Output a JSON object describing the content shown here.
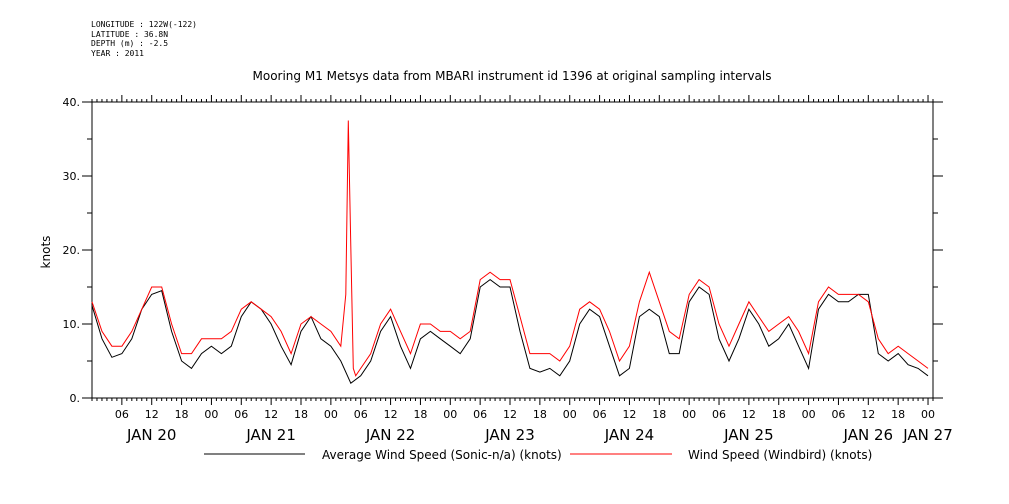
{
  "meta": {
    "longitude": "LONGITUDE : 122W(-122)",
    "latitude": "LATITUDE : 36.8N",
    "depth": "DEPTH (m) : -2.5",
    "year": "YEAR : 2011"
  },
  "chart_data": {
    "type": "line",
    "title": "Mooring M1 Metsys data from MBARI instrument id 1396 at original sampling intervals",
    "ylabel": "knots",
    "xlabel": "",
    "ylim": [
      0,
      40
    ],
    "yticks": [
      0,
      10,
      20,
      30,
      40
    ],
    "ytick_labels": [
      "0.",
      "10.",
      "20.",
      "30.",
      "40."
    ],
    "xlim_hours": [
      0,
      169
    ],
    "hour_tick_labels": [
      "06",
      "12",
      "18",
      "00",
      "06",
      "12",
      "18",
      "00",
      "06",
      "12",
      "18",
      "00",
      "06",
      "12",
      "18",
      "00",
      "06",
      "12",
      "18",
      "00",
      "06",
      "12",
      "18",
      "00",
      "06",
      "12",
      "18",
      "00"
    ],
    "hour_tick_positions": [
      6,
      12,
      18,
      24,
      30,
      36,
      42,
      48,
      54,
      60,
      66,
      72,
      78,
      84,
      90,
      96,
      102,
      108,
      114,
      120,
      126,
      132,
      138,
      144,
      150,
      156,
      162,
      168
    ],
    "day_labels": [
      "JAN 20",
      "JAN 21",
      "JAN 22",
      "JAN 23",
      "JAN 24",
      "JAN 25",
      "JAN 26",
      "JAN 27"
    ],
    "day_positions": [
      12,
      36,
      60,
      84,
      108,
      132,
      156,
      168
    ],
    "grid": false,
    "legend": "bottom",
    "series": [
      {
        "name": "Average Wind Speed (Sonic-n/a) (knots)",
        "color": "#000000",
        "x": [
          0,
          2,
          4,
          6,
          8,
          10,
          12,
          14,
          16,
          18,
          20,
          22,
          24,
          26,
          28,
          30,
          32,
          34,
          36,
          38,
          40,
          42,
          44,
          46,
          48,
          50,
          52,
          54,
          56,
          58,
          60,
          62,
          64,
          66,
          68,
          70,
          72,
          74,
          76,
          78,
          80,
          82,
          84,
          86,
          88,
          90,
          92,
          94,
          96,
          98,
          100,
          102,
          104,
          106,
          108,
          110,
          112,
          114,
          116,
          118,
          120,
          122,
          124,
          126,
          128,
          130,
          132,
          134,
          136,
          138,
          140,
          142,
          144,
          146,
          148,
          150,
          152,
          154,
          156,
          158,
          160,
          162,
          164,
          166,
          168
        ],
        "values": [
          12.5,
          8,
          5.5,
          6,
          8,
          12,
          14,
          14.5,
          9,
          5,
          4,
          6,
          7,
          6,
          7,
          11,
          13,
          12,
          10,
          7,
          4.5,
          9,
          11,
          8,
          7,
          5,
          2,
          3,
          5,
          9,
          11,
          7,
          4,
          8,
          9,
          8,
          7,
          6,
          8,
          15,
          16,
          15,
          15,
          9,
          4,
          3.5,
          4,
          3,
          5,
          10,
          12,
          11,
          7,
          3,
          4,
          11,
          12,
          11,
          6,
          6,
          13,
          15,
          14,
          8,
          5,
          8,
          12,
          10,
          7,
          8,
          10,
          7,
          4,
          12,
          14,
          13,
          13,
          14,
          14,
          6,
          5,
          6,
          4.5,
          4,
          3
        ]
      },
      {
        "name": "Wind Speed (Windbird) (knots)",
        "color": "#ff0000",
        "x": [
          0,
          2,
          4,
          6,
          8,
          10,
          12,
          14,
          16,
          18,
          20,
          22,
          24,
          26,
          28,
          30,
          32,
          34,
          36,
          38,
          40,
          42,
          44,
          46,
          48,
          50,
          51,
          51.5,
          52,
          52.5,
          53,
          54,
          56,
          58,
          60,
          62,
          64,
          66,
          68,
          70,
          72,
          74,
          76,
          78,
          80,
          82,
          84,
          86,
          88,
          90,
          92,
          94,
          96,
          98,
          100,
          102,
          104,
          106,
          108,
          110,
          112,
          114,
          116,
          118,
          120,
          122,
          124,
          126,
          128,
          130,
          132,
          134,
          136,
          138,
          140,
          142,
          144,
          146,
          148,
          150,
          152,
          154,
          156,
          158,
          160,
          162,
          164,
          166,
          168
        ],
        "values": [
          13,
          9,
          7,
          7,
          9,
          12,
          15,
          15,
          10,
          6,
          6,
          8,
          8,
          8,
          9,
          12,
          13,
          12,
          11,
          9,
          6,
          10,
          11,
          10,
          9,
          7,
          14,
          37.5,
          20.5,
          4,
          3,
          4,
          6,
          10,
          12,
          9,
          6,
          10,
          10,
          9,
          9,
          8,
          9,
          16,
          17,
          16,
          16,
          11,
          6,
          6,
          6,
          5,
          7,
          12,
          13,
          12,
          9,
          5,
          7,
          13,
          17,
          13,
          9,
          8,
          14,
          16,
          15,
          10,
          7,
          10,
          13,
          11,
          9,
          10,
          11,
          9,
          6,
          13,
          15,
          14,
          14,
          14,
          13,
          8,
          6,
          7,
          6,
          5,
          4
        ]
      }
    ]
  }
}
